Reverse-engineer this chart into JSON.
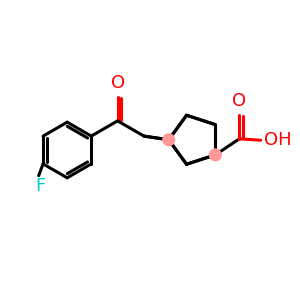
{
  "background_color": "#ffffff",
  "bond_color": "#000000",
  "oxygen_color": "#ff0000",
  "fluorine_color": "#00cccc",
  "stereo_dot_color": "#ff9999",
  "line_width": 2.2,
  "figsize": [
    3.0,
    3.0
  ],
  "dpi": 100,
  "xlim": [
    0,
    10
  ],
  "ylim": [
    0,
    10
  ]
}
